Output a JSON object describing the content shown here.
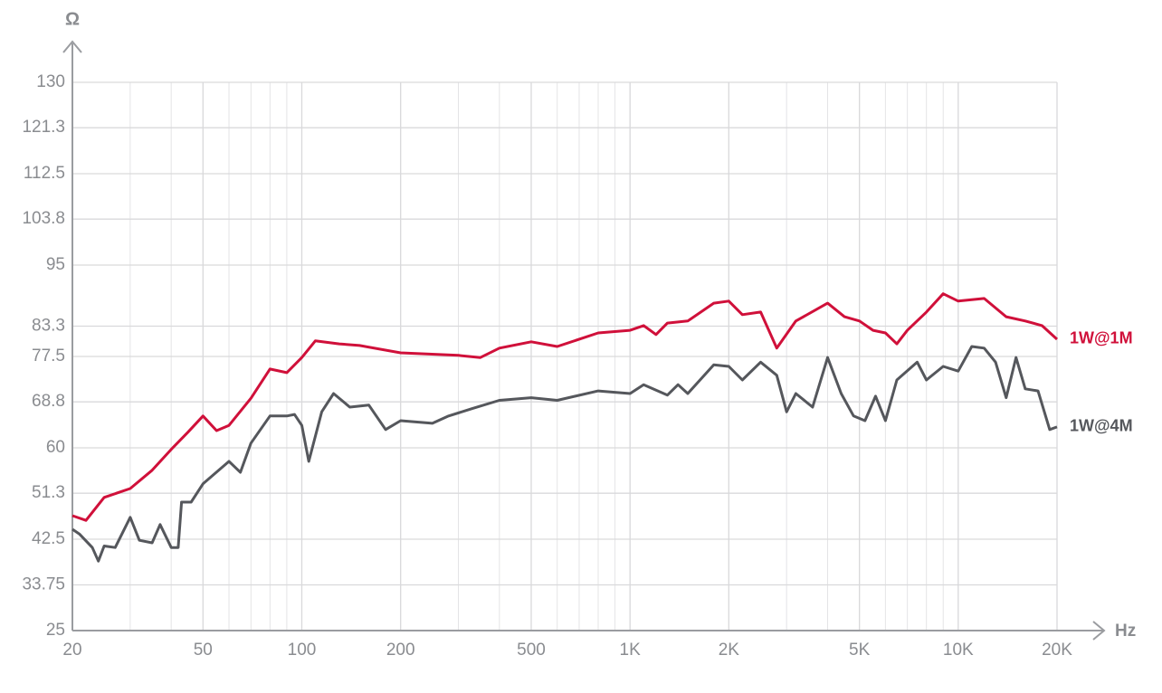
{
  "chart_data": {
    "type": "line",
    "y_axis_label": "Ω",
    "x_axis_label": "Hz",
    "log_x": true,
    "grid": true,
    "xlim": [
      20,
      20000
    ],
    "xticks": [
      20,
      50,
      100,
      200,
      500,
      {
        "value": 1000,
        "label": "1K"
      },
      {
        "value": 2000,
        "label": "2K"
      },
      {
        "value": 5000,
        "label": "5K"
      },
      {
        "value": 10000,
        "label": "10K"
      },
      {
        "value": 20000,
        "label": "20K"
      }
    ],
    "ylim": [
      25,
      130
    ],
    "yticks": [
      25,
      33.75,
      42.5,
      51.3,
      60,
      68.8,
      77.5,
      83.3,
      95,
      103.8,
      112.5,
      121.3,
      130
    ],
    "series": [
      {
        "name": "1W@1M",
        "color": "#d0103a",
        "x": [
          20,
          22,
          25,
          30,
          35,
          40,
          45,
          50,
          55,
          60,
          70,
          80,
          90,
          100,
          110,
          130,
          150,
          200,
          300,
          350,
          400,
          500,
          600,
          800,
          1000,
          1100,
          1200,
          1300,
          1500,
          1800,
          2000,
          2200,
          2500,
          2800,
          3200,
          4000,
          4500,
          5000,
          5500,
          6000,
          6500,
          7000,
          8000,
          9000,
          10000,
          12000,
          14000,
          16000,
          18000,
          20000
        ],
        "values": [
          47.0,
          46.1,
          50.5,
          52.2,
          55.7,
          59.7,
          63.0,
          66.1,
          63.3,
          64.3,
          69.5,
          75.1,
          74.4,
          77.3,
          80.5,
          79.9,
          79.6,
          78.2,
          77.7,
          77.3,
          79.1,
          80.3,
          79.4,
          82.0,
          82.5,
          83.4,
          81.7,
          83.9,
          84.3,
          87.7,
          88.1,
          85.5,
          86.0,
          79.1,
          84.3,
          87.7,
          85.1,
          84.3,
          82.5,
          82.0,
          79.9,
          82.5,
          86.0,
          89.5,
          88.1,
          88.6,
          85.1,
          84.3,
          83.4,
          80.8
        ]
      },
      {
        "name": "1W@4M",
        "color": "#55575c",
        "x": [
          20,
          21,
          23,
          24,
          25,
          27,
          30,
          32,
          35,
          37,
          40,
          42,
          43,
          46,
          50,
          60,
          65,
          70,
          80,
          90,
          95,
          100,
          105,
          115,
          125,
          140,
          160,
          180,
          200,
          250,
          280,
          330,
          400,
          500,
          600,
          800,
          1000,
          1100,
          1300,
          1400,
          1500,
          1800,
          2000,
          2200,
          2500,
          2800,
          3000,
          3200,
          3600,
          4000,
          4400,
          4800,
          5200,
          5600,
          6000,
          6500,
          7500,
          8000,
          9000,
          10000,
          11000,
          12000,
          13000,
          14000,
          15000,
          16000,
          17500,
          19000,
          20000
        ],
        "values": [
          44.4,
          43.5,
          40.9,
          38.3,
          41.2,
          40.9,
          46.7,
          42.3,
          41.8,
          45.3,
          40.9,
          40.9,
          49.6,
          49.6,
          53.1,
          57.4,
          55.3,
          60.9,
          66.1,
          66.1,
          66.4,
          64.3,
          57.4,
          66.9,
          70.4,
          67.8,
          68.2,
          63.5,
          65.2,
          64.7,
          66.1,
          67.5,
          69.1,
          69.6,
          69.1,
          70.9,
          70.4,
          72.1,
          70.1,
          72.1,
          70.4,
          75.9,
          75.6,
          73.0,
          76.4,
          73.9,
          66.9,
          70.4,
          67.8,
          77.3,
          70.4,
          66.1,
          65.2,
          69.9,
          65.2,
          73.0,
          76.4,
          73.0,
          75.6,
          74.7,
          79.4,
          79.1,
          76.4,
          69.6,
          77.3,
          71.3,
          70.9,
          63.5,
          64.0
        ]
      }
    ]
  }
}
